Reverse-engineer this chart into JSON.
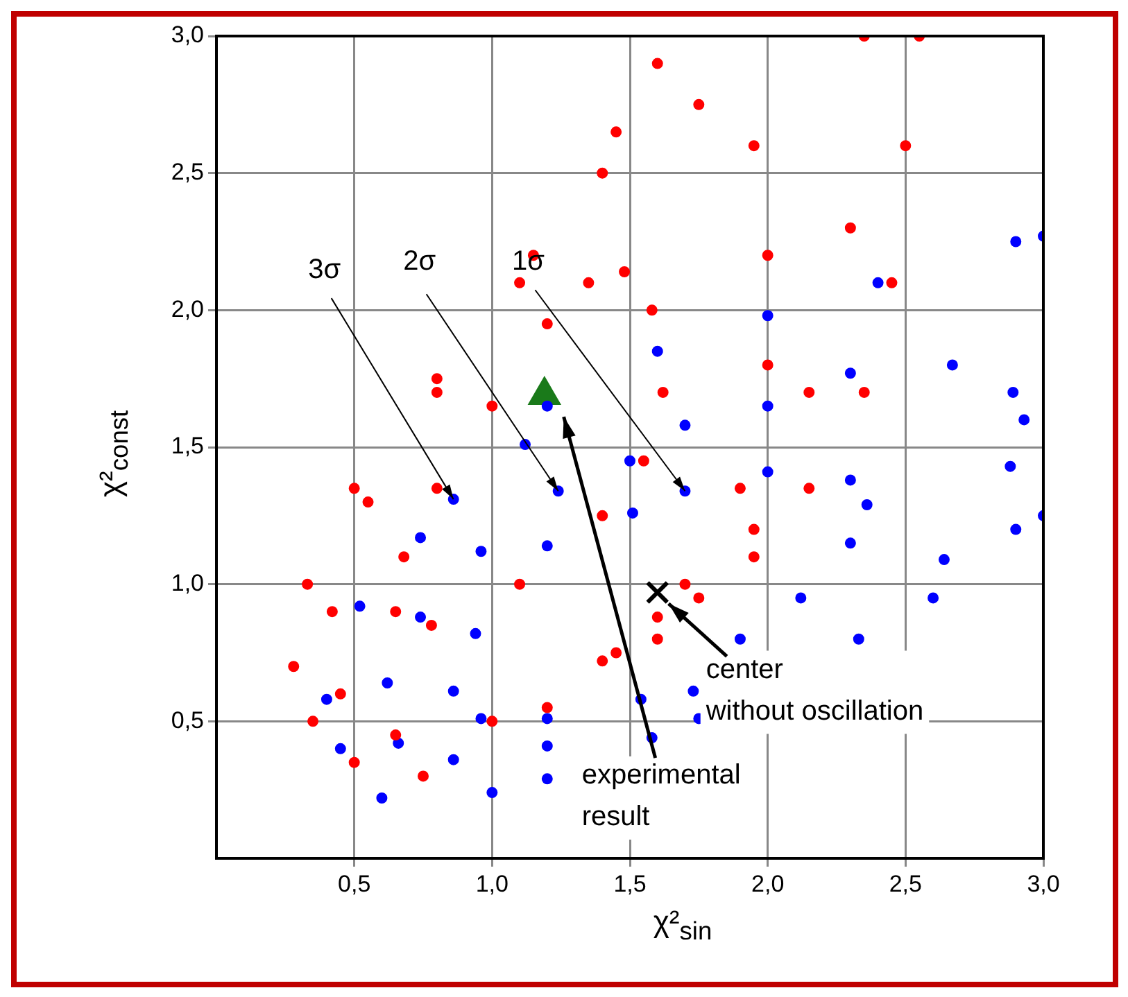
{
  "chart_data": {
    "type": "scatter",
    "xlabel": "χ²$_{sin}$",
    "ylabel": "χ²$_{const}$",
    "xlim": [
      0,
      3
    ],
    "ylim": [
      0,
      3
    ],
    "xticks": [
      {
        "value": 0.5,
        "label": "0,5"
      },
      {
        "value": 1,
        "label": "1,0"
      },
      {
        "value": 1.5,
        "label": "1,5"
      },
      {
        "value": 2,
        "label": "2,0"
      },
      {
        "value": 2.5,
        "label": "2,5"
      },
      {
        "value": 3,
        "label": "3,0"
      }
    ],
    "yticks": [
      {
        "value": 0.5,
        "label": "0,5"
      },
      {
        "value": 1,
        "label": "1,0"
      },
      {
        "value": 1.5,
        "label": "1,5"
      },
      {
        "value": 2,
        "label": "2,0"
      },
      {
        "value": 2.5,
        "label": "2,5"
      },
      {
        "value": 3,
        "label": "3,0"
      }
    ],
    "grid": true,
    "marker": "circle",
    "series": [
      {
        "color": "#ff0000",
        "x": [
          2.35,
          2.3,
          2.15,
          1.95,
          1.6,
          1.2,
          0.75,
          0.5,
          0.35,
          0.28,
          0.33,
          0.5,
          0.8,
          1.15,
          1.45,
          1.6
        ],
        "values": [
          3.0,
          2.3,
          1.7,
          1.2,
          0.8,
          0.55,
          0.3,
          0.35,
          0.5,
          0.7,
          1.0,
          1.35,
          1.75,
          2.2,
          2.65,
          2.9
        ]
      },
      {
        "color": "#ff0000",
        "x": [
          1.75,
          1.95,
          2.0,
          2.0,
          1.9,
          1.7,
          1.4,
          1.0,
          0.65,
          0.45,
          0.42,
          0.55,
          0.8,
          1.1,
          1.4
        ],
        "values": [
          2.75,
          2.6,
          2.2,
          1.8,
          1.35,
          1.0,
          0.72,
          0.5,
          0.45,
          0.6,
          0.9,
          1.3,
          1.7,
          2.1,
          2.5
        ]
      },
      {
        "color": "#ff0000",
        "x": [
          1.48,
          1.58,
          1.62,
          1.55,
          1.4,
          1.1,
          0.78,
          0.65,
          0.68,
          0.8,
          1.0,
          1.2,
          1.35
        ],
        "values": [
          2.14,
          2.0,
          1.7,
          1.45,
          1.25,
          1.0,
          0.85,
          0.9,
          1.1,
          1.35,
          1.65,
          1.95,
          2.1
        ]
      },
      {
        "color": "#ff0000",
        "x": [
          2.55,
          2.5,
          2.45,
          2.35,
          2.15,
          1.95,
          1.75,
          1.6,
          1.45
        ],
        "values": [
          3.0,
          2.6,
          2.1,
          1.7,
          1.35,
          1.1,
          0.95,
          0.88,
          0.75
        ]
      },
      {
        "color": "#0000ff",
        "x": [
          3.0,
          2.9,
          2.4,
          2.0,
          1.6,
          1.2,
          1.12,
          0.86,
          0.74,
          0.52,
          0.4,
          0.45,
          0.6,
          1.0,
          1.2,
          1.58,
          1.75,
          2.6,
          2.9,
          3.0
        ],
        "values": [
          2.27,
          2.25,
          2.1,
          1.98,
          1.85,
          1.65,
          1.51,
          1.31,
          1.17,
          0.92,
          0.58,
          0.4,
          0.22,
          0.24,
          0.29,
          0.44,
          0.51,
          0.95,
          1.2,
          1.25
        ]
      },
      {
        "color": "#0000ff",
        "x": [
          1.24,
          0.96,
          0.74,
          0.62,
          0.66,
          0.86,
          1.2,
          1.73,
          2.33,
          2.64,
          2.88,
          2.93,
          2.89,
          2.67,
          2.3,
          2.0,
          1.7,
          1.5
        ],
        "values": [
          1.34,
          1.12,
          0.88,
          0.64,
          0.42,
          0.36,
          0.41,
          0.61,
          0.8,
          1.09,
          1.43,
          1.6,
          1.7,
          1.8,
          1.77,
          1.65,
          1.58,
          1.45
        ]
      },
      {
        "color": "#0000ff",
        "x": [
          1.51,
          1.2,
          0.94,
          0.86,
          0.96,
          1.2,
          1.54,
          1.9,
          2.12,
          2.3,
          2.36,
          2.3,
          2.0,
          1.7
        ],
        "values": [
          1.26,
          1.14,
          0.82,
          0.61,
          0.51,
          0.51,
          0.58,
          0.8,
          0.95,
          1.15,
          1.29,
          1.38,
          1.41,
          1.34
        ]
      },
      {
        "color": "#1a7a1a",
        "marker": "triangle",
        "x": [
          1.19
        ],
        "values": [
          1.69
        ]
      },
      {
        "color": "#000000",
        "marker": "cross",
        "x": [
          1.6
        ],
        "values": [
          0.97
        ]
      }
    ],
    "annotations": [
      {
        "text": "3σ",
        "x": 0.86,
        "y": 1.31
      },
      {
        "text": "2σ",
        "x": 1.24,
        "y": 1.34
      },
      {
        "text": "1σ",
        "x": 1.7,
        "y": 1.34
      },
      "experimental\nresult",
      {
        "text": "center\nwithout oscillation",
        "x": 1.6,
        "y": 0.97
      }
    ]
  }
}
